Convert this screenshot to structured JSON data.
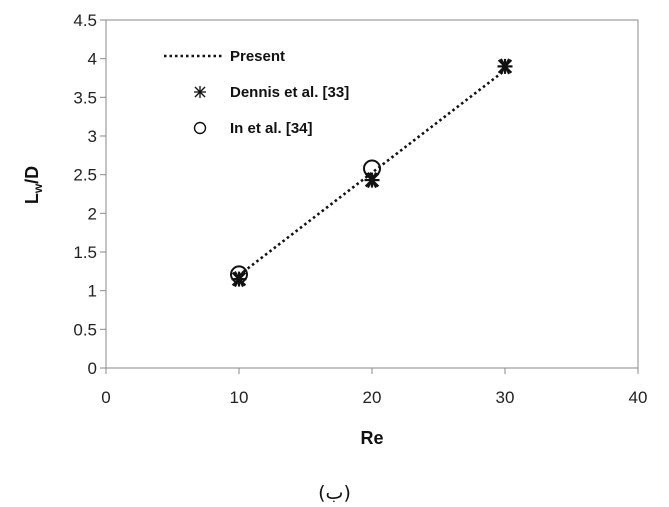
{
  "chart_data": {
    "type": "scatter",
    "xlabel": "Re",
    "ylabel": {
      "main": "L",
      "sub": "w",
      "rest": "/D"
    },
    "xlim": [
      0,
      40
    ],
    "ylim": [
      0,
      4.5
    ],
    "xticks": [
      "0",
      "10",
      "20",
      "30",
      "40"
    ],
    "yticks": [
      "0",
      "0.5",
      "1",
      "1.5",
      "2",
      "2.5",
      "3",
      "3.5",
      "4",
      "4.5"
    ],
    "grid": false,
    "legend_position": "top-left",
    "series": [
      {
        "name": "Present",
        "style": "dotted-line",
        "x": [
          10,
          30
        ],
        "y": [
          1.2,
          3.85
        ]
      },
      {
        "name": "Dennis et al. [33]",
        "style": "asterisk",
        "x": [
          10,
          20,
          30
        ],
        "y": [
          1.15,
          2.43,
          3.9
        ]
      },
      {
        "name": "In et al. [34]",
        "style": "open-circle",
        "x": [
          10,
          20
        ],
        "y": [
          1.21,
          2.58
        ]
      }
    ],
    "caption": "(ب)"
  }
}
